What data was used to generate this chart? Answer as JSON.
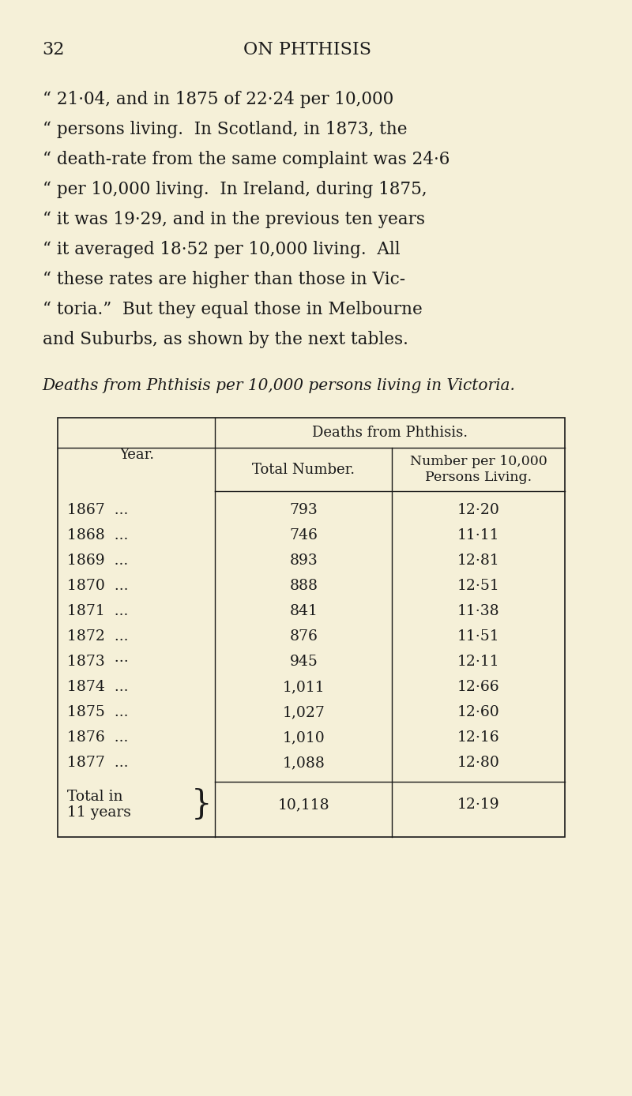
{
  "page_number": "32",
  "page_title": "ON PHTHISIS",
  "body_text": [
    "“ 21·04, and in 1875 of 22·24 per 10,000",
    "“ persons living.  In Scotland, in 1873, the",
    "“ death-rate from the same complaint was 24·6",
    "“ per 10,000 living.  In Ireland, during 1875,",
    "“ it was 19·29, and in the previous ten years",
    "“ it averaged 18·52 per 10,000 living.  All",
    "“ these rates are higher than those in Vic-",
    "“ toria.”  But they equal those in Melbourne",
    "and Suburbs, as shown by the next tables."
  ],
  "table_caption": "Deaths from Phthisis per 10,000 persons living in Victoria.",
  "table_header_top": "Deaths from Phthisis.",
  "table_col1_header": "Year.",
  "table_col2_header": "Total Number.",
  "table_col3_header": "Number per 10,000\nPersons Living.",
  "table_rows": [
    [
      "1867  ...",
      "793",
      "12·20"
    ],
    [
      "1868  ...",
      "746",
      "11·11"
    ],
    [
      "1869  ...",
      "893",
      "12·81"
    ],
    [
      "1870  ...",
      "888",
      "12·51"
    ],
    [
      "1871  ...",
      "841",
      "11·38"
    ],
    [
      "1872  ...",
      "876",
      "11·51"
    ],
    [
      "1873  ···",
      "945",
      "12·11"
    ],
    [
      "1874  ...",
      "1,011",
      "12·66"
    ],
    [
      "1875  ...",
      "1,027",
      "12·60"
    ],
    [
      "1876  ...",
      "1,010",
      "12·16"
    ],
    [
      "1877  ...",
      "1,088",
      "12·80"
    ]
  ],
  "table_total_col1a": "Total in",
  "table_total_col1b": "11 years",
  "table_total_col2": "10,118",
  "table_total_col3": "12·19",
  "bg_color": "#f5f0d8",
  "text_color": "#1a1a1a",
  "font_size_body": 15.5,
  "font_size_header": 13,
  "font_size_table": 13.5
}
